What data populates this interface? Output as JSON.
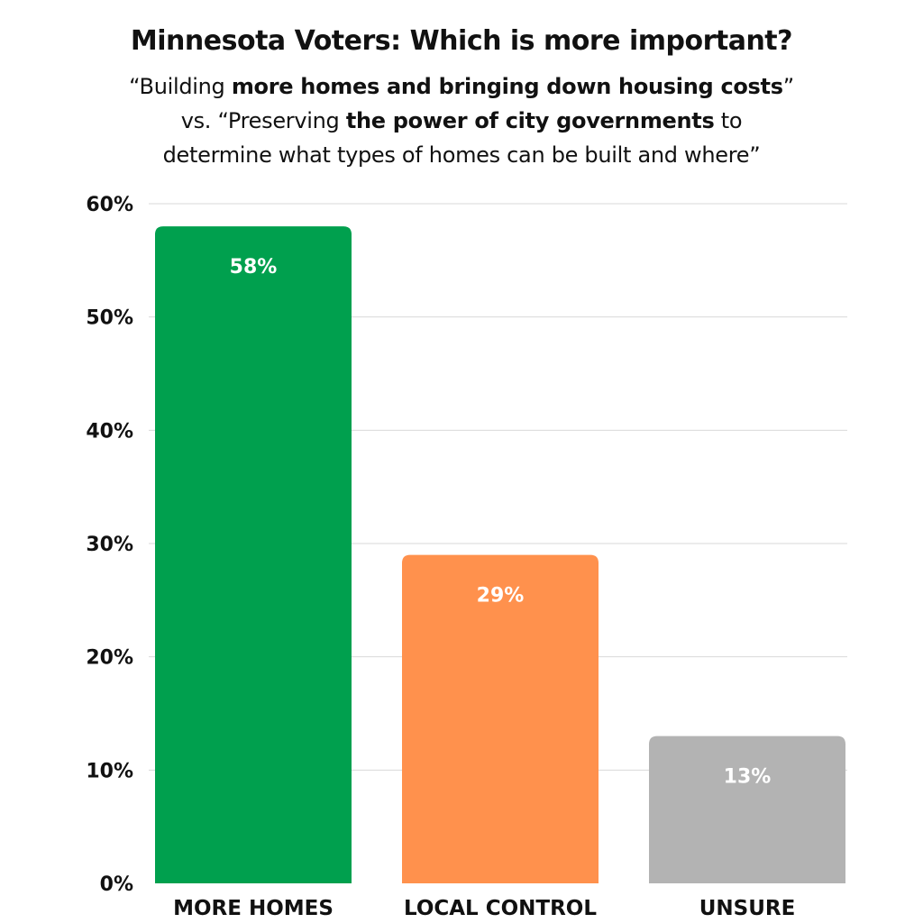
{
  "chart_data": {
    "type": "bar",
    "title": "Minnesota Voters: Which is more important?",
    "subtitle": {
      "line1": {
        "pre": "“Building ",
        "bold": "more homes and bringing down housing costs",
        "post": "”"
      },
      "line2": {
        "pre": "vs. “Preserving ",
        "bold": "the power of city governments",
        "post": " to"
      },
      "line3": {
        "pre": "determine what types of homes can be built and where”"
      }
    },
    "categories": [
      "MORE HOMES",
      "LOCAL CONTROL",
      "UNSURE"
    ],
    "values": [
      58,
      29,
      13
    ],
    "data_labels": [
      "58%",
      "29%",
      "13%"
    ],
    "colors": [
      "#00A04E",
      "#FF914D",
      "#B3B3B3"
    ],
    "ylim": [
      0,
      60
    ],
    "yticks": [
      0,
      10,
      20,
      30,
      40,
      50,
      60
    ],
    "ytick_labels": [
      "0%",
      "10%",
      "20%",
      "30%",
      "40%",
      "50%",
      "60%"
    ],
    "grid": true,
    "grid_color": "#d9d9d9",
    "xlabel": "",
    "ylabel": ""
  }
}
